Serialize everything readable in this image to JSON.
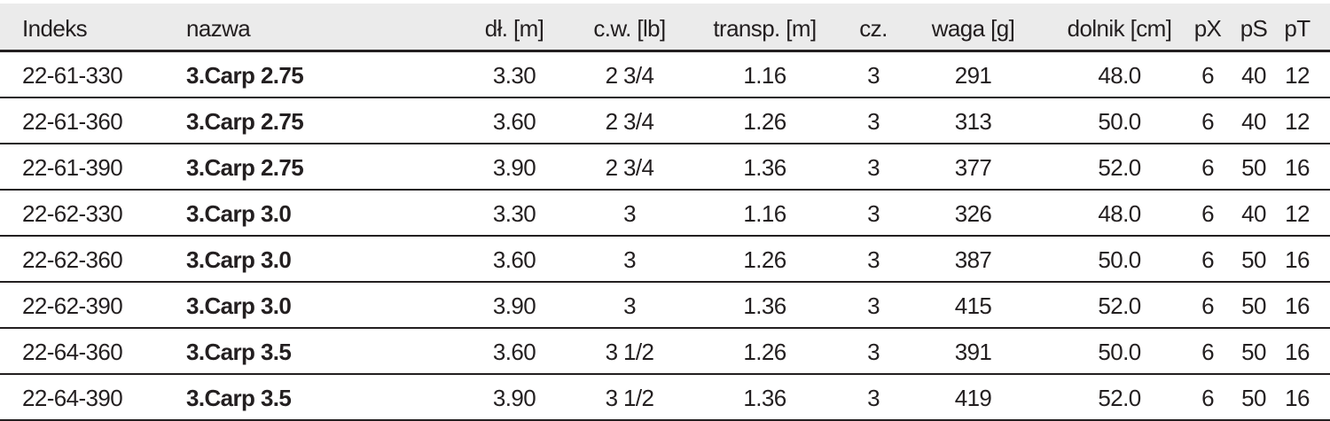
{
  "headers": [
    "Indeks",
    "nazwa",
    "dł. [m]",
    "c.w. [lb]",
    "transp. [m]",
    "cz.",
    "waga [g]",
    "dolnik [cm]",
    "pX",
    "pS",
    "pT"
  ],
  "rows": [
    [
      "22-61-330",
      "3.Carp 2.75",
      "3.30",
      "2 3/4",
      "1.16",
      "3",
      "291",
      "48.0",
      "6",
      "40",
      "12"
    ],
    [
      "22-61-360",
      "3.Carp 2.75",
      "3.60",
      "2 3/4",
      "1.26",
      "3",
      "313",
      "50.0",
      "6",
      "40",
      "12"
    ],
    [
      "22-61-390",
      "3.Carp 2.75",
      "3.90",
      "2 3/4",
      "1.36",
      "3",
      "377",
      "52.0",
      "6",
      "50",
      "16"
    ],
    [
      "22-62-330",
      "3.Carp 3.0",
      "3.30",
      "3",
      "1.16",
      "3",
      "326",
      "48.0",
      "6",
      "40",
      "12"
    ],
    [
      "22-62-360",
      "3.Carp 3.0",
      "3.60",
      "3",
      "1.26",
      "3",
      "387",
      "50.0",
      "6",
      "50",
      "16"
    ],
    [
      "22-62-390",
      "3.Carp 3.0",
      "3.90",
      "3",
      "1.36",
      "3",
      "415",
      "52.0",
      "6",
      "50",
      "16"
    ],
    [
      "22-64-360",
      "3.Carp 3.5",
      "3.60",
      "3 1/2",
      "1.26",
      "3",
      "391",
      "50.0",
      "6",
      "50",
      "16"
    ],
    [
      "22-64-390",
      "3.Carp 3.5",
      "3.90",
      "3 1/2",
      "1.36",
      "3",
      "419",
      "52.0",
      "6",
      "50",
      "16"
    ]
  ]
}
